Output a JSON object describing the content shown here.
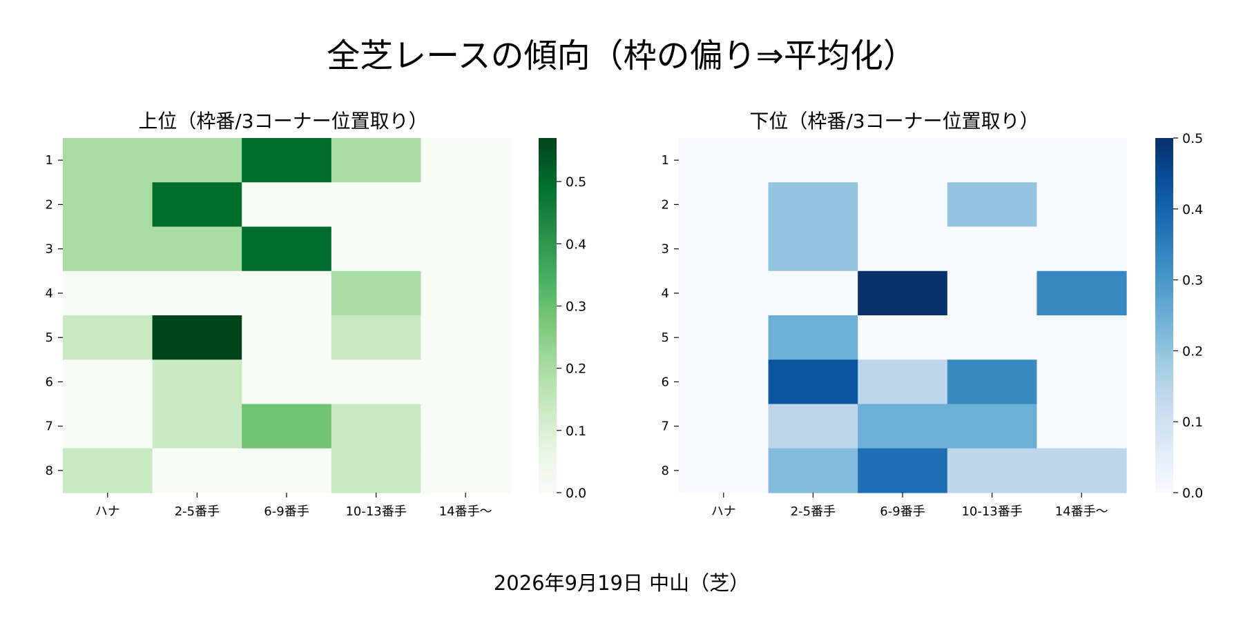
{
  "figure": {
    "title": "全芝レースの傾向（枠の偏り⇒平均化）",
    "footer": "2026年9月19日 中山（芝）"
  },
  "chart_data": [
    {
      "type": "heatmap",
      "title": "上位（枠番/3コーナー位置取り）",
      "xlabel": "",
      "ylabel": "",
      "x_categories": [
        "ハナ",
        "2-5番手",
        "6-9番手",
        "10-13番手",
        "14番手～"
      ],
      "y_categories": [
        "1",
        "2",
        "3",
        "4",
        "5",
        "6",
        "7",
        "8"
      ],
      "values": [
        [
          0.2,
          0.2,
          0.5,
          0.2,
          0.0
        ],
        [
          0.2,
          0.5,
          0.0,
          0.0,
          0.0
        ],
        [
          0.2,
          0.2,
          0.5,
          0.0,
          0.0
        ],
        [
          0.0,
          0.0,
          0.0,
          0.2,
          0.0
        ],
        [
          0.14,
          0.57,
          0.0,
          0.14,
          0.0
        ],
        [
          0.0,
          0.14,
          0.0,
          0.0,
          0.0
        ],
        [
          0.0,
          0.14,
          0.29,
          0.14,
          0.0
        ],
        [
          0.14,
          0.0,
          0.0,
          0.14,
          0.0
        ]
      ],
      "colormap": "Greens",
      "vmin": 0.0,
      "vmax": 0.57,
      "colorbar_ticks": [
        "0.0",
        "0.1",
        "0.2",
        "0.3",
        "0.4",
        "0.5"
      ],
      "color_low": "#f7fcf5",
      "color_high": "#00441b"
    },
    {
      "type": "heatmap",
      "title": "下位（枠番/3コーナー位置取り）",
      "xlabel": "",
      "ylabel": "",
      "x_categories": [
        "ハナ",
        "2-5番手",
        "6-9番手",
        "10-13番手",
        "14番手～"
      ],
      "y_categories": [
        "1",
        "2",
        "3",
        "4",
        "5",
        "6",
        "7",
        "8"
      ],
      "values": [
        [
          0.0,
          0.0,
          0.0,
          0.0,
          0.0
        ],
        [
          0.0,
          0.2,
          0.0,
          0.2,
          0.0
        ],
        [
          0.0,
          0.2,
          0.0,
          0.0,
          0.0
        ],
        [
          0.0,
          0.0,
          0.5,
          0.0,
          0.33
        ],
        [
          0.0,
          0.25,
          0.0,
          0.0,
          0.0
        ],
        [
          0.0,
          0.43,
          0.14,
          0.33,
          0.0
        ],
        [
          0.0,
          0.14,
          0.25,
          0.25,
          0.0
        ],
        [
          0.0,
          0.22,
          0.38,
          0.14,
          0.14
        ]
      ],
      "colormap": "Blues",
      "vmin": 0.0,
      "vmax": 0.5,
      "colorbar_ticks": [
        "0.0",
        "0.1",
        "0.2",
        "0.3",
        "0.4",
        "0.5"
      ],
      "color_low": "#f7fbff",
      "color_high": "#08306b"
    }
  ]
}
